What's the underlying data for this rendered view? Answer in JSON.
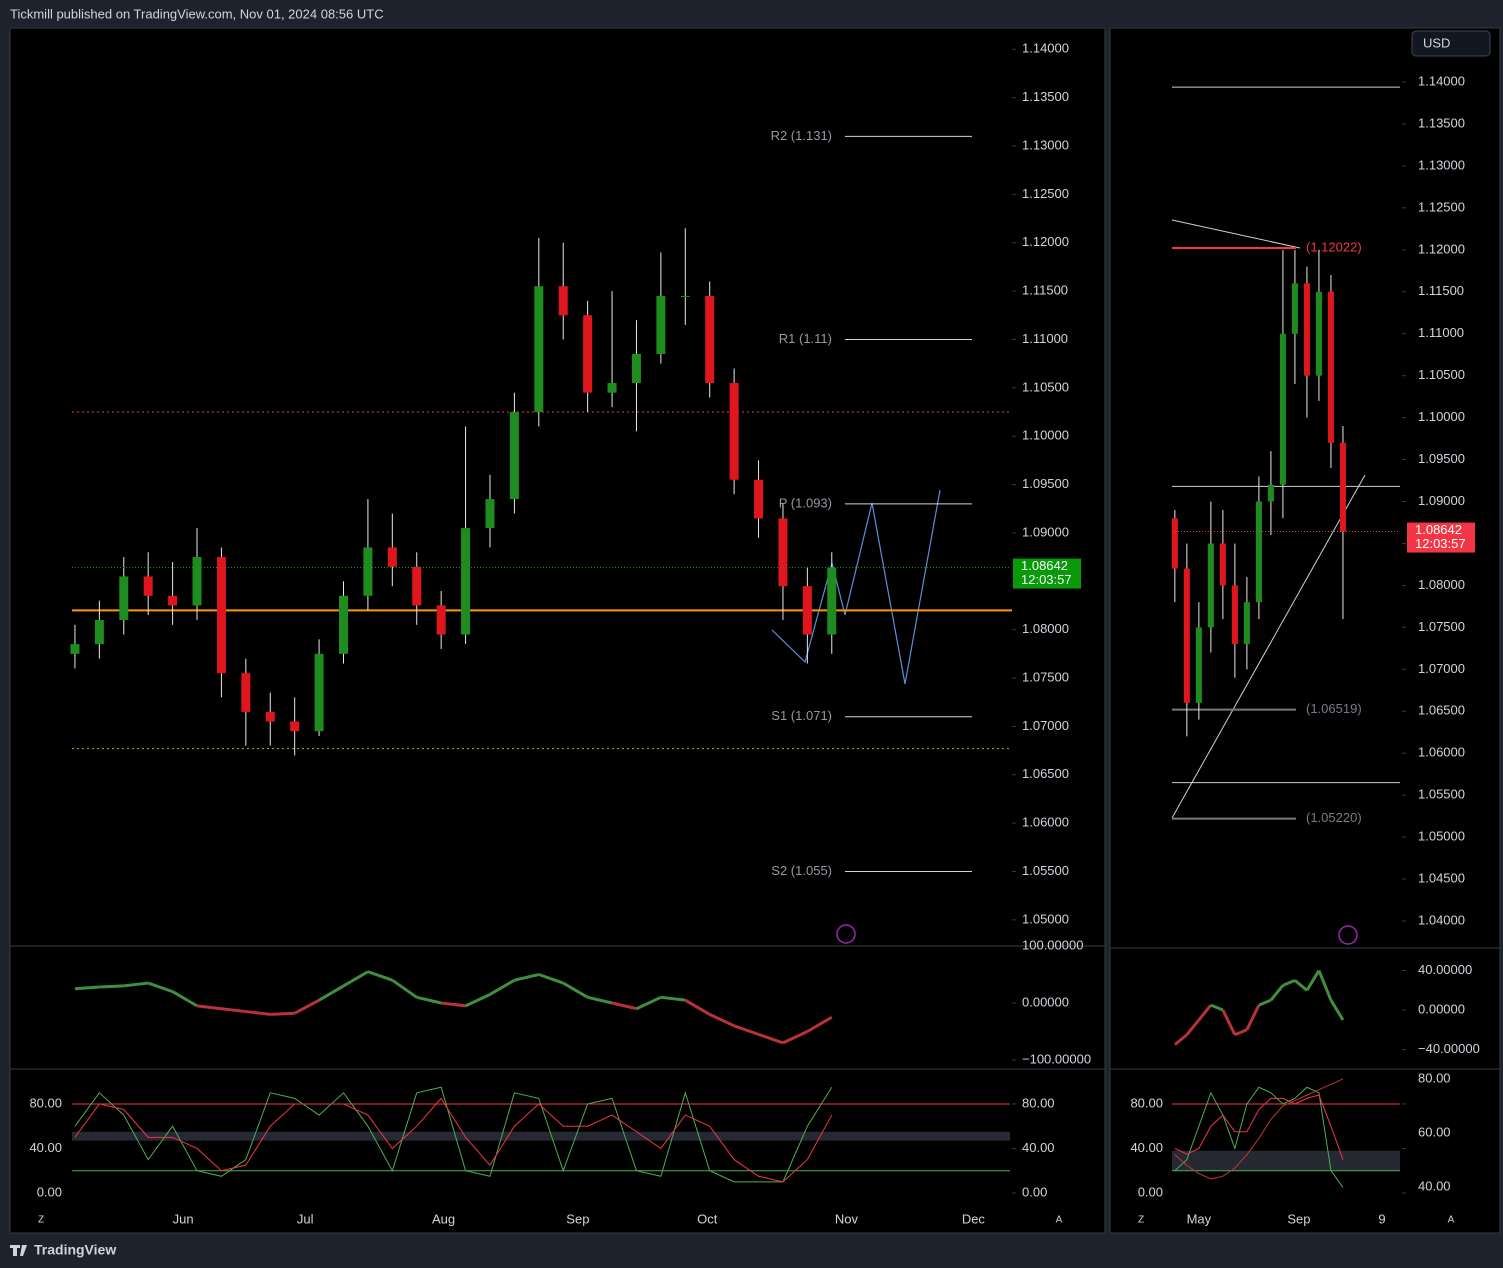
{
  "header": {
    "title": "Tickmill published on TradingView.com, Nov 01, 2024 08:56 UTC"
  },
  "footer": {
    "brand": "TradingView"
  },
  "ui": {
    "currency": "USD",
    "left_button": "Z",
    "right_button": "A"
  },
  "chart_data": [
    {
      "type": "candlestick",
      "x": [
        0,
        1,
        2,
        3,
        4,
        5,
        6,
        7,
        8,
        9,
        10,
        11,
        12,
        13,
        14,
        15,
        16,
        17,
        18,
        19,
        20,
        21,
        22,
        23,
        24,
        25,
        26,
        27,
        28,
        29,
        30,
        31
      ],
      "open": [
        1.0775,
        1.0785,
        1.081,
        1.0855,
        1.0835,
        1.0825,
        1.0875,
        1.0755,
        1.0715,
        1.0705,
        1.0695,
        1.0775,
        1.0835,
        1.0885,
        1.0865,
        1.0825,
        1.0795,
        1.0905,
        1.0935,
        1.1025,
        1.1155,
        1.1125,
        1.1045,
        1.1055,
        1.1085,
        1.1145,
        1.1145,
        1.1055,
        1.0955,
        1.0915,
        1.0845,
        1.0795
      ],
      "high": [
        1.0805,
        1.083,
        1.0875,
        1.088,
        1.087,
        1.0905,
        1.0885,
        1.077,
        1.0735,
        1.073,
        1.079,
        1.085,
        1.0935,
        1.092,
        1.088,
        1.084,
        1.101,
        1.096,
        1.1045,
        1.1205,
        1.12,
        1.114,
        1.115,
        1.112,
        1.119,
        1.1215,
        1.116,
        1.107,
        1.0975,
        1.093,
        1.0865,
        1.088
      ],
      "low": [
        1.076,
        1.077,
        1.0795,
        1.0815,
        1.0805,
        1.081,
        1.073,
        1.068,
        1.068,
        1.067,
        1.069,
        1.0765,
        1.082,
        1.0845,
        1.0805,
        1.078,
        1.0785,
        1.0885,
        1.092,
        1.101,
        1.11,
        1.1025,
        1.103,
        1.1005,
        1.1075,
        1.1115,
        1.104,
        1.094,
        1.0895,
        1.081,
        1.0765,
        1.0775
      ],
      "close": [
        1.0785,
        1.081,
        1.0855,
        1.0835,
        1.0825,
        1.0875,
        1.0755,
        1.0715,
        1.0705,
        1.0695,
        1.0775,
        1.0835,
        1.0885,
        1.0865,
        1.0825,
        1.0795,
        1.0905,
        1.0935,
        1.1025,
        1.1155,
        1.1125,
        1.1045,
        1.1055,
        1.1085,
        1.1145,
        1.1145,
        1.1055,
        1.0955,
        1.0915,
        1.0845,
        1.0795,
        1.0864
      ],
      "up_color": "#1e8c1e",
      "down_color": "#e0161e",
      "xlim": [
        -2.66,
        38.3
      ],
      "ylim": [
        1.0474,
        1.1422
      ],
      "xticks": [
        {
          "value": 4.43,
          "label": "Jun"
        },
        {
          "value": 9.43,
          "label": "Jul"
        },
        {
          "value": 15.1,
          "label": "Aug"
        },
        {
          "value": 20.6,
          "label": "Sep"
        },
        {
          "value": 25.9,
          "label": "Oct"
        },
        {
          "value": 31.6,
          "label": "Nov"
        },
        {
          "value": 36.8,
          "label": "Dec"
        }
      ],
      "yticks": [
        {
          "value": 1.05,
          "label": "1.05000"
        },
        {
          "value": 1.055,
          "label": "1.05500"
        },
        {
          "value": 1.06,
          "label": "1.06000"
        },
        {
          "value": 1.065,
          "label": "1.06500"
        },
        {
          "value": 1.07,
          "label": "1.07000"
        },
        {
          "value": 1.075,
          "label": "1.07500"
        },
        {
          "value": 1.08,
          "label": "1.08000"
        },
        {
          "value": 1.085,
          "label": "1.08500"
        },
        {
          "value": 1.09,
          "label": "1.09000"
        },
        {
          "value": 1.095,
          "label": "1.09500"
        },
        {
          "value": 1.1,
          "label": "1.10000"
        },
        {
          "value": 1.105,
          "label": "1.10500"
        },
        {
          "value": 1.11,
          "label": "1.11000"
        },
        {
          "value": 1.115,
          "label": "1.11500"
        },
        {
          "value": 1.12,
          "label": "1.12000"
        },
        {
          "value": 1.125,
          "label": "1.12500"
        },
        {
          "value": 1.13,
          "label": "1.13000"
        },
        {
          "value": 1.135,
          "label": "1.13500"
        },
        {
          "value": 1.14,
          "label": "1.14000"
        }
      ],
      "pivots": [
        {
          "label": "R2 (1.131)",
          "value": 1.131
        },
        {
          "label": "R1 (1.11)",
          "value": 1.11
        },
        {
          "label": "P (1.093)",
          "value": 1.093
        },
        {
          "label": "S1 (1.071)",
          "value": 1.071
        },
        {
          "label": "S2 (1.055)",
          "value": 1.055
        }
      ],
      "hlines": [
        {
          "value": 1.082,
          "color": "#ff9800",
          "style": "solid"
        },
        {
          "value": 1.1025,
          "color": "#f23645",
          "style": "dotted"
        },
        {
          "value": 1.0677,
          "color": "#8bc34a",
          "style": "dotted"
        }
      ],
      "last": {
        "value": 1.08642,
        "countdown": "12:03:57",
        "color": "#089a08"
      }
    },
    {
      "type": "line",
      "x": [
        0,
        1,
        2,
        3,
        4,
        5,
        6,
        7,
        8,
        9,
        10,
        11,
        12,
        13,
        14,
        15,
        16,
        17,
        18,
        19,
        20,
        21,
        22,
        23,
        24,
        25,
        26,
        27,
        28,
        29,
        30,
        31
      ],
      "xlim": [
        -2.66,
        38.3
      ],
      "ylim": [
        -114,
        100
      ],
      "yticks": [
        {
          "value": 100,
          "label": "100.00000"
        },
        {
          "value": 0,
          "label": "0.00000"
        },
        {
          "value": -100,
          "label": "−100.00000"
        }
      ],
      "series": [
        {
          "color": "#3f8f3f",
          "negative_color": "#b8323a",
          "values": [
            25,
            28,
            30,
            35,
            20,
            -5,
            -10,
            -15,
            -20,
            -18,
            5,
            30,
            55,
            40,
            10,
            0,
            -5,
            15,
            40,
            50,
            35,
            10,
            0,
            -10,
            10,
            5,
            -20,
            -40,
            -55,
            -70,
            -50,
            -25
          ]
        }
      ]
    },
    {
      "type": "line",
      "x": [
        0,
        1,
        2,
        3,
        4,
        5,
        6,
        7,
        8,
        9,
        10,
        11,
        12,
        13,
        14,
        15,
        16,
        17,
        18,
        19,
        20,
        21,
        22,
        23,
        24,
        25,
        26,
        27,
        28,
        29,
        30,
        31
      ],
      "xlim": [
        -2.66,
        38.3
      ],
      "ylim": [
        -15.3,
        110.5
      ],
      "yticks": [
        {
          "value": 0,
          "label": "0.00"
        },
        {
          "value": 40,
          "label": "40.00"
        },
        {
          "value": 80,
          "label": "80.00"
        }
      ],
      "hlines": [
        {
          "value": 80,
          "color": "#f23645",
          "style": "solid"
        },
        {
          "value": 20,
          "color": "#4caf50",
          "style": "solid"
        }
      ],
      "band": [
        47,
        55
      ],
      "series": [
        {
          "color": "#4caf50",
          "values": [
            60,
            90,
            70,
            30,
            60,
            20,
            15,
            30,
            90,
            85,
            70,
            90,
            60,
            20,
            90,
            95,
            20,
            15,
            90,
            85,
            20,
            80,
            85,
            20,
            15,
            90,
            20,
            10,
            10,
            10,
            60,
            95
          ]
        },
        {
          "color": "#f23645",
          "values": [
            50,
            80,
            75,
            50,
            50,
            40,
            20,
            25,
            60,
            80,
            80,
            80,
            70,
            40,
            60,
            85,
            50,
            25,
            60,
            80,
            60,
            60,
            70,
            55,
            40,
            70,
            60,
            30,
            15,
            10,
            30,
            70
          ]
        }
      ]
    },
    {
      "type": "candlestick",
      "x": [
        0,
        1,
        2,
        3,
        4,
        5,
        6,
        7,
        8,
        9,
        10,
        11,
        12,
        13,
        14
      ],
      "open": [
        1.088,
        1.082,
        1.066,
        1.075,
        1.085,
        1.08,
        1.073,
        1.078,
        1.09,
        1.092,
        1.11,
        1.116,
        1.105,
        1.115,
        1.097
      ],
      "high": [
        1.089,
        1.085,
        1.078,
        1.09,
        1.089,
        1.085,
        1.081,
        1.093,
        1.096,
        1.12,
        1.12,
        1.118,
        1.12,
        1.117,
        1.099
      ],
      "low": [
        1.078,
        1.062,
        1.064,
        1.072,
        1.076,
        1.069,
        1.07,
        1.076,
        1.086,
        1.088,
        1.104,
        1.1,
        1.102,
        1.094,
        1.076
      ],
      "close": [
        1.082,
        1.066,
        1.075,
        1.085,
        1.08,
        1.073,
        1.078,
        1.09,
        1.092,
        1.11,
        1.116,
        1.105,
        1.115,
        1.097,
        1.0864
      ],
      "up_color": "#1e8c1e",
      "down_color": "#e0161e",
      "xlim": [
        -5.4,
        18.75
      ],
      "ylim": [
        1.03714,
        1.14644
      ],
      "xticks": [
        {
          "value": 2,
          "label": "May"
        },
        {
          "value": 10.33,
          "label": "Sep"
        },
        {
          "value": 17.25,
          "label": "9"
        }
      ],
      "yticks": [
        {
          "value": 1.04,
          "label": "1.04000"
        },
        {
          "value": 1.045,
          "label": "1.04500"
        },
        {
          "value": 1.05,
          "label": "1.05000"
        },
        {
          "value": 1.055,
          "label": "1.05500"
        },
        {
          "value": 1.06,
          "label": "1.06000"
        },
        {
          "value": 1.065,
          "label": "1.06500"
        },
        {
          "value": 1.07,
          "label": "1.07000"
        },
        {
          "value": 1.075,
          "label": "1.07500"
        },
        {
          "value": 1.08,
          "label": "1.08000"
        },
        {
          "value": 1.085,
          "label": "1.08500"
        },
        {
          "value": 1.09,
          "label": "1.09000"
        },
        {
          "value": 1.095,
          "label": "1.09500"
        },
        {
          "value": 1.1,
          "label": "1.10000"
        },
        {
          "value": 1.105,
          "label": "1.10500"
        },
        {
          "value": 1.11,
          "label": "1.11000"
        },
        {
          "value": 1.115,
          "label": "1.11500"
        },
        {
          "value": 1.12,
          "label": "1.12000"
        },
        {
          "value": 1.125,
          "label": "1.12500"
        },
        {
          "value": 1.13,
          "label": "1.13000"
        },
        {
          "value": 1.135,
          "label": "1.13500"
        },
        {
          "value": 1.14,
          "label": "1.14000"
        }
      ],
      "marked_levels": [
        {
          "value": 1.12022,
          "label": "(1.12022)",
          "color": "#f23645"
        },
        {
          "value": 1.06519,
          "label": "(1.06519)",
          "color": "#787b86"
        },
        {
          "value": 1.0522,
          "label": "(1.05220)",
          "color": "#787b86"
        }
      ],
      "hlines": [
        {
          "value": 1.1394,
          "color": "#cfcfcf",
          "style": "solid"
        },
        {
          "value": 1.0918,
          "color": "#cfcfcf",
          "style": "solid"
        },
        {
          "value": 1.0565,
          "color": "#cfcfcf",
          "style": "solid"
        }
      ],
      "last": {
        "value": 1.08642,
        "countdown": "12:03:57",
        "color": "#f23645"
      }
    },
    {
      "type": "line",
      "x": [
        0,
        1,
        2,
        3,
        4,
        5,
        6,
        7,
        8,
        9,
        10,
        11,
        12,
        13,
        14
      ],
      "xlim": [
        -5.4,
        18.75
      ],
      "ylim": [
        -58.7,
        60.8
      ],
      "yticks": [
        {
          "value": 40,
          "label": "40.00000"
        },
        {
          "value": 0,
          "label": "0.00000"
        },
        {
          "value": -40,
          "label": "−40.00000"
        }
      ],
      "series": [
        {
          "color": "#3f8f3f",
          "negative_color": "#b8323a",
          "values": [
            -35,
            -25,
            -10,
            5,
            0,
            -25,
            -20,
            5,
            10,
            25,
            30,
            20,
            40,
            10,
            -10
          ]
        }
      ]
    },
    {
      "type": "line",
      "x": [
        0,
        1,
        2,
        3,
        4,
        5,
        6,
        7,
        8,
        9,
        10,
        11,
        12,
        13,
        14
      ],
      "xlim": [
        -5.4,
        18.75
      ],
      "ylim": [
        -15.3,
        110.5
      ],
      "y2lim": [
        31.5,
        83.3
      ],
      "yticks": [
        {
          "value": 0,
          "label": "0.00"
        },
        {
          "value": 40,
          "label": "40.00"
        },
        {
          "value": 80,
          "label": "80.00"
        }
      ],
      "y2ticks": [
        {
          "value": 40,
          "label": "40.00"
        },
        {
          "value": 60,
          "label": "60.00"
        },
        {
          "value": 80,
          "label": "80.00"
        }
      ],
      "hlines": [
        {
          "value": 80,
          "color": "#f23645",
          "style": "solid"
        },
        {
          "value": 20,
          "color": "#4caf50",
          "style": "solid"
        }
      ],
      "band": [
        20,
        38
      ],
      "series": [
        {
          "color": "#4caf50",
          "values": [
            20,
            30,
            60,
            90,
            70,
            40,
            80,
            95,
            90,
            80,
            85,
            95,
            90,
            20,
            5
          ]
        },
        {
          "color": "#f23645",
          "values": [
            40,
            35,
            40,
            60,
            70,
            55,
            55,
            75,
            85,
            85,
            80,
            85,
            88,
            60,
            30
          ]
        },
        {
          "color": "#c0392b",
          "axis": "y2",
          "values": [
            52,
            48,
            45,
            43,
            44,
            47,
            52,
            58,
            65,
            70,
            72,
            74,
            76,
            78,
            80
          ]
        }
      ]
    }
  ]
}
